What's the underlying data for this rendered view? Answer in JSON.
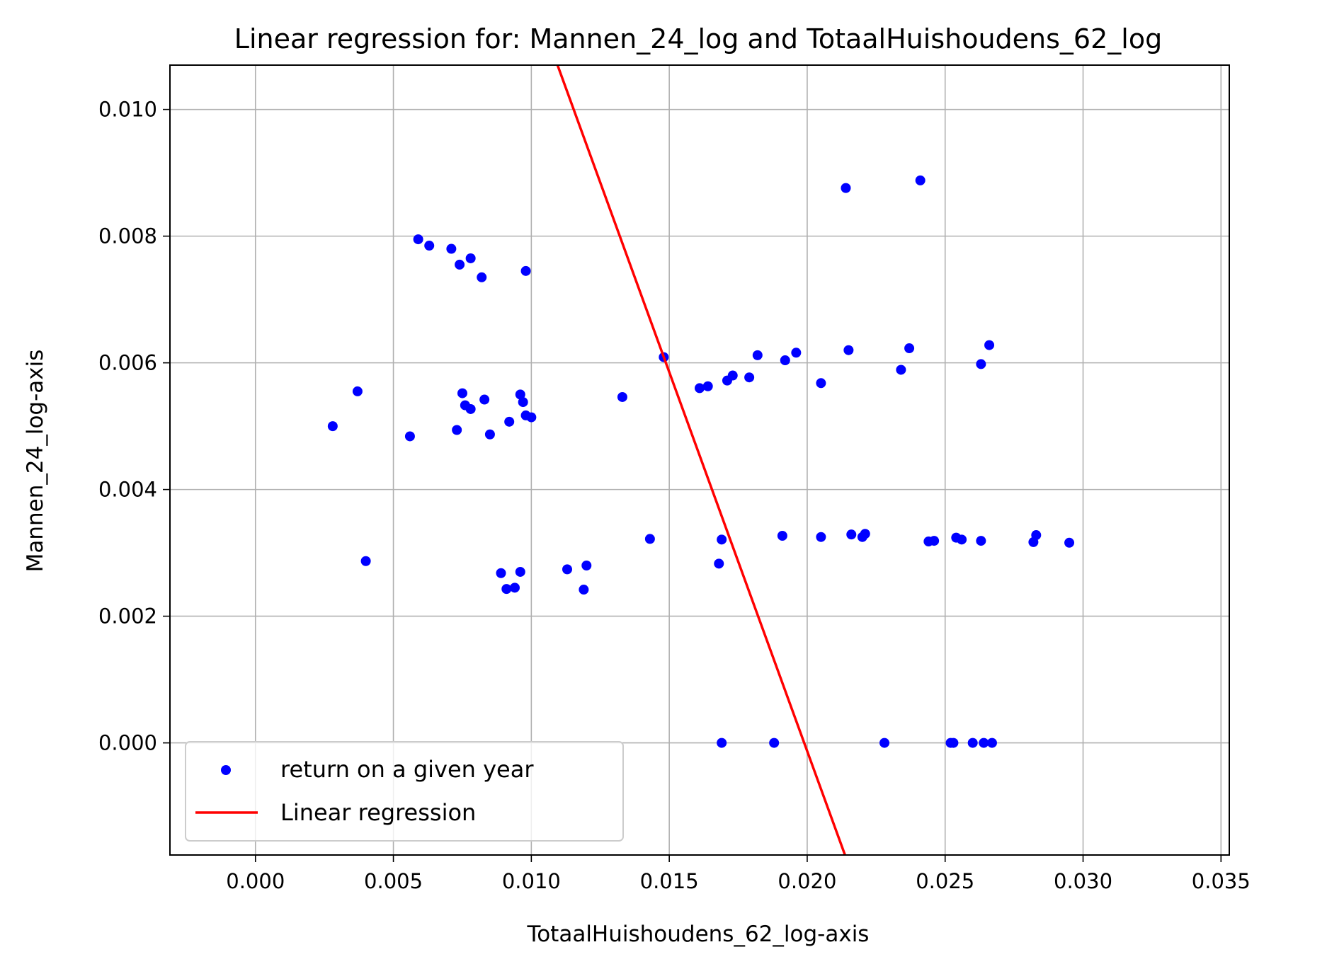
{
  "chart_data": {
    "type": "scatter",
    "title": "Linear regression for: Mannen_24_log and TotaalHuishoudens_62_log",
    "xlabel": "TotaalHuishoudens_62_log-axis",
    "ylabel": "Mannen_24_log-axis",
    "xlim": [
      -0.0031,
      0.0353
    ],
    "ylim": [
      -0.00177,
      0.0107
    ],
    "xticks": [
      0.0,
      0.005,
      0.01,
      0.015,
      0.02,
      0.025,
      0.03,
      0.035
    ],
    "xtick_labels": [
      "0.000",
      "0.005",
      "0.010",
      "0.015",
      "0.020",
      "0.025",
      "0.030",
      "0.035"
    ],
    "yticks": [
      0.0,
      0.002,
      0.004,
      0.006,
      0.008,
      0.01
    ],
    "ytick_labels": [
      "0.000",
      "0.002",
      "0.004",
      "0.006",
      "0.008",
      "0.010"
    ],
    "grid": true,
    "legend_position": "lower-left",
    "series": [
      {
        "name": "return on a given year",
        "kind": "scatter",
        "color": "#0000ff",
        "points": [
          [
            0.0028,
            0.005
          ],
          [
            0.0037,
            0.00555
          ],
          [
            0.004,
            0.00287
          ],
          [
            0.0056,
            0.00484
          ],
          [
            0.0059,
            0.00795
          ],
          [
            0.0063,
            0.00785
          ],
          [
            0.0071,
            0.0078
          ],
          [
            0.0073,
            0.00494
          ],
          [
            0.0074,
            0.00755
          ],
          [
            0.0075,
            0.00552
          ],
          [
            0.0076,
            0.00533
          ],
          [
            0.0078,
            0.00527
          ],
          [
            0.0078,
            0.00765
          ],
          [
            0.0082,
            0.00735
          ],
          [
            0.0083,
            0.00542
          ],
          [
            0.0085,
            0.00487
          ],
          [
            0.0089,
            0.00268
          ],
          [
            0.0091,
            0.00243
          ],
          [
            0.0092,
            0.00507
          ],
          [
            0.0094,
            0.00245
          ],
          [
            0.0096,
            0.0055
          ],
          [
            0.0096,
            0.0027
          ],
          [
            0.0097,
            0.00538
          ],
          [
            0.0098,
            0.00517
          ],
          [
            0.0098,
            0.00745
          ],
          [
            0.01,
            0.00514
          ],
          [
            0.0113,
            0.00274
          ],
          [
            0.0119,
            0.00242
          ],
          [
            0.012,
            0.0028
          ],
          [
            0.0133,
            0.00546
          ],
          [
            0.0143,
            0.00322
          ],
          [
            0.0148,
            0.00609
          ],
          [
            0.0161,
            0.0056
          ],
          [
            0.0164,
            0.00563
          ],
          [
            0.0168,
            0.00283
          ],
          [
            0.0169,
            0.00321
          ],
          [
            0.0169,
            0.0
          ],
          [
            0.0171,
            0.00572
          ],
          [
            0.0173,
            0.0058
          ],
          [
            0.0179,
            0.00577
          ],
          [
            0.0182,
            0.00612
          ],
          [
            0.0188,
            0.0
          ],
          [
            0.0191,
            0.00327
          ],
          [
            0.0192,
            0.00604
          ],
          [
            0.0196,
            0.00616
          ],
          [
            0.0205,
            0.00568
          ],
          [
            0.0205,
            0.00325
          ],
          [
            0.0214,
            0.00876
          ],
          [
            0.0215,
            0.0062
          ],
          [
            0.0216,
            0.00329
          ],
          [
            0.022,
            0.00325
          ],
          [
            0.0221,
            0.0033
          ],
          [
            0.0228,
            0.0
          ],
          [
            0.0234,
            0.00589
          ],
          [
            0.0237,
            0.00623
          ],
          [
            0.0241,
            0.00888
          ],
          [
            0.0244,
            0.00318
          ],
          [
            0.0246,
            0.00319
          ],
          [
            0.0252,
            0.0
          ],
          [
            0.0253,
            0.0
          ],
          [
            0.0254,
            0.00324
          ],
          [
            0.0256,
            0.00321
          ],
          [
            0.026,
            0.0
          ],
          [
            0.0263,
            0.00598
          ],
          [
            0.0263,
            0.00319
          ],
          [
            0.0264,
            0.0
          ],
          [
            0.0266,
            0.00628
          ],
          [
            0.0267,
            0.0
          ],
          [
            0.0282,
            0.00317
          ],
          [
            0.0283,
            0.00328
          ],
          [
            0.0295,
            0.00316
          ]
        ]
      },
      {
        "name": "Linear regression",
        "kind": "line",
        "color": "#ff0000",
        "points": [
          [
            0.01095,
            0.0107
          ],
          [
            0.02137,
            -0.00177
          ]
        ]
      }
    ]
  }
}
